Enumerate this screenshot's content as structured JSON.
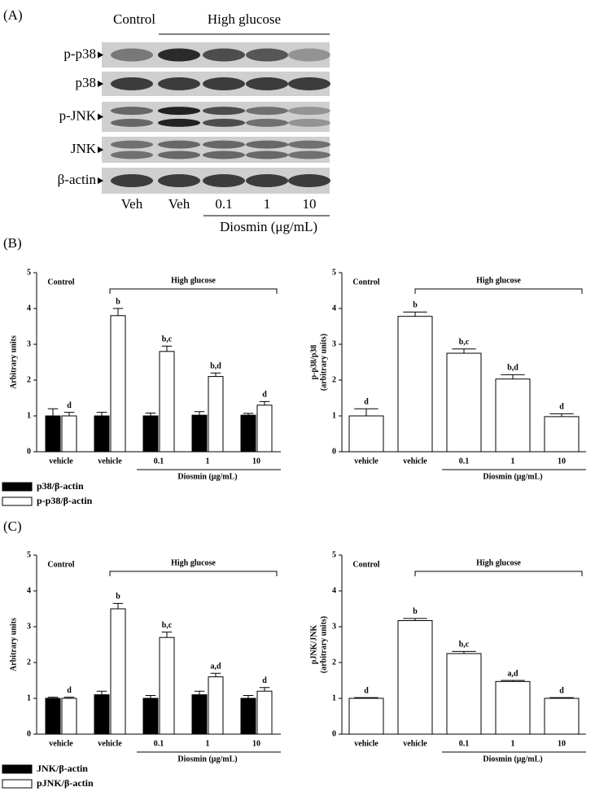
{
  "panel_labels": [
    "(A)",
    "(B)",
    "(C)"
  ],
  "blot": {
    "control": "Control",
    "high_glucose": "High glucose",
    "rows": [
      "p-p38",
      "p38",
      "p-JNK",
      "JNK",
      "β-actin"
    ],
    "lanes": [
      "Veh",
      "Veh",
      "0.1",
      "1",
      "10"
    ],
    "diosmin": "Diosmin (μg/mL)"
  },
  "chart_data": [
    {
      "type": "bar",
      "ylabel": [
        "Arbitrary units"
      ],
      "control": "Control",
      "group": "High glucose",
      "xlabel": "Diosmin (μg/mL)",
      "categories": [
        "vehicle",
        "vehicle",
        "0.1",
        "1",
        "10"
      ],
      "ylim": [
        0,
        5
      ],
      "yticks": [
        0,
        1,
        2,
        3,
        4,
        5
      ],
      "series": [
        {
          "name": "p38/β-actin",
          "color": "#000000",
          "values": [
            1.0,
            1.0,
            1.0,
            1.02,
            1.02
          ],
          "errors": [
            0.2,
            0.1,
            0.08,
            0.1,
            0.05
          ]
        },
        {
          "name": "p-p38/β-actin",
          "color": "#ffffff",
          "values": [
            1.0,
            3.8,
            2.8,
            2.1,
            1.3
          ],
          "errors": [
            0.1,
            0.2,
            0.15,
            0.1,
            0.1
          ],
          "significance": [
            "d",
            "b",
            "b,c",
            "b,d",
            "d"
          ]
        }
      ]
    },
    {
      "type": "bar",
      "ylabel": [
        "p-p38/p38",
        "(arbitrary units)"
      ],
      "control": "Control",
      "group": "High glucose",
      "xlabel": "Diosmin (μg/mL)",
      "categories": [
        "vehicle",
        "vehicle",
        "0.1",
        "1",
        "10"
      ],
      "ylim": [
        0,
        5
      ],
      "yticks": [
        0,
        1,
        2,
        3,
        4,
        5
      ],
      "series": [
        {
          "color": "#ffffff",
          "values": [
            1.0,
            3.78,
            2.75,
            2.03,
            0.98
          ],
          "errors": [
            0.2,
            0.12,
            0.12,
            0.12,
            0.08
          ],
          "significance": [
            "d",
            "b",
            "b,c",
            "b,d",
            "d"
          ]
        }
      ]
    },
    {
      "type": "bar",
      "ylabel": [
        "Arbitrary units"
      ],
      "control": "Control",
      "group": "High glucose",
      "xlabel": "Diosmin (μg/mL)",
      "categories": [
        "vehicle",
        "vehicle",
        "0.1",
        "1",
        "10"
      ],
      "ylim": [
        0,
        5
      ],
      "yticks": [
        0,
        1,
        2,
        3,
        4,
        5
      ],
      "series": [
        {
          "name": "JNK/β-actin",
          "color": "#000000",
          "values": [
            1.0,
            1.1,
            1.0,
            1.1,
            1.0
          ],
          "errors": [
            0.03,
            0.1,
            0.08,
            0.1,
            0.08
          ]
        },
        {
          "name": "pJNK/β-actin",
          "color": "#ffffff",
          "values": [
            1.0,
            3.5,
            2.7,
            1.6,
            1.2
          ],
          "errors": [
            0.03,
            0.15,
            0.15,
            0.1,
            0.1
          ],
          "significance": [
            "d",
            "b",
            "b,c",
            "a,d",
            "d"
          ]
        }
      ]
    },
    {
      "type": "bar",
      "ylabel": [
        "pJNK/JNK",
        "(arbitrary units)"
      ],
      "control": "Control",
      "group": "High glucose",
      "xlabel": "Diosmin (μg/mL)",
      "categories": [
        "vehicle",
        "vehicle",
        "0.1",
        "1",
        "10"
      ],
      "ylim": [
        0,
        5
      ],
      "yticks": [
        0,
        1,
        2,
        3,
        4,
        5
      ],
      "series": [
        {
          "color": "#ffffff",
          "values": [
            1.0,
            3.17,
            2.25,
            1.47,
            1.0
          ],
          "errors": [
            0.02,
            0.06,
            0.06,
            0.03,
            0.02
          ],
          "significance": [
            "d",
            "b",
            "b,c",
            "a,d",
            "d"
          ]
        }
      ]
    }
  ]
}
